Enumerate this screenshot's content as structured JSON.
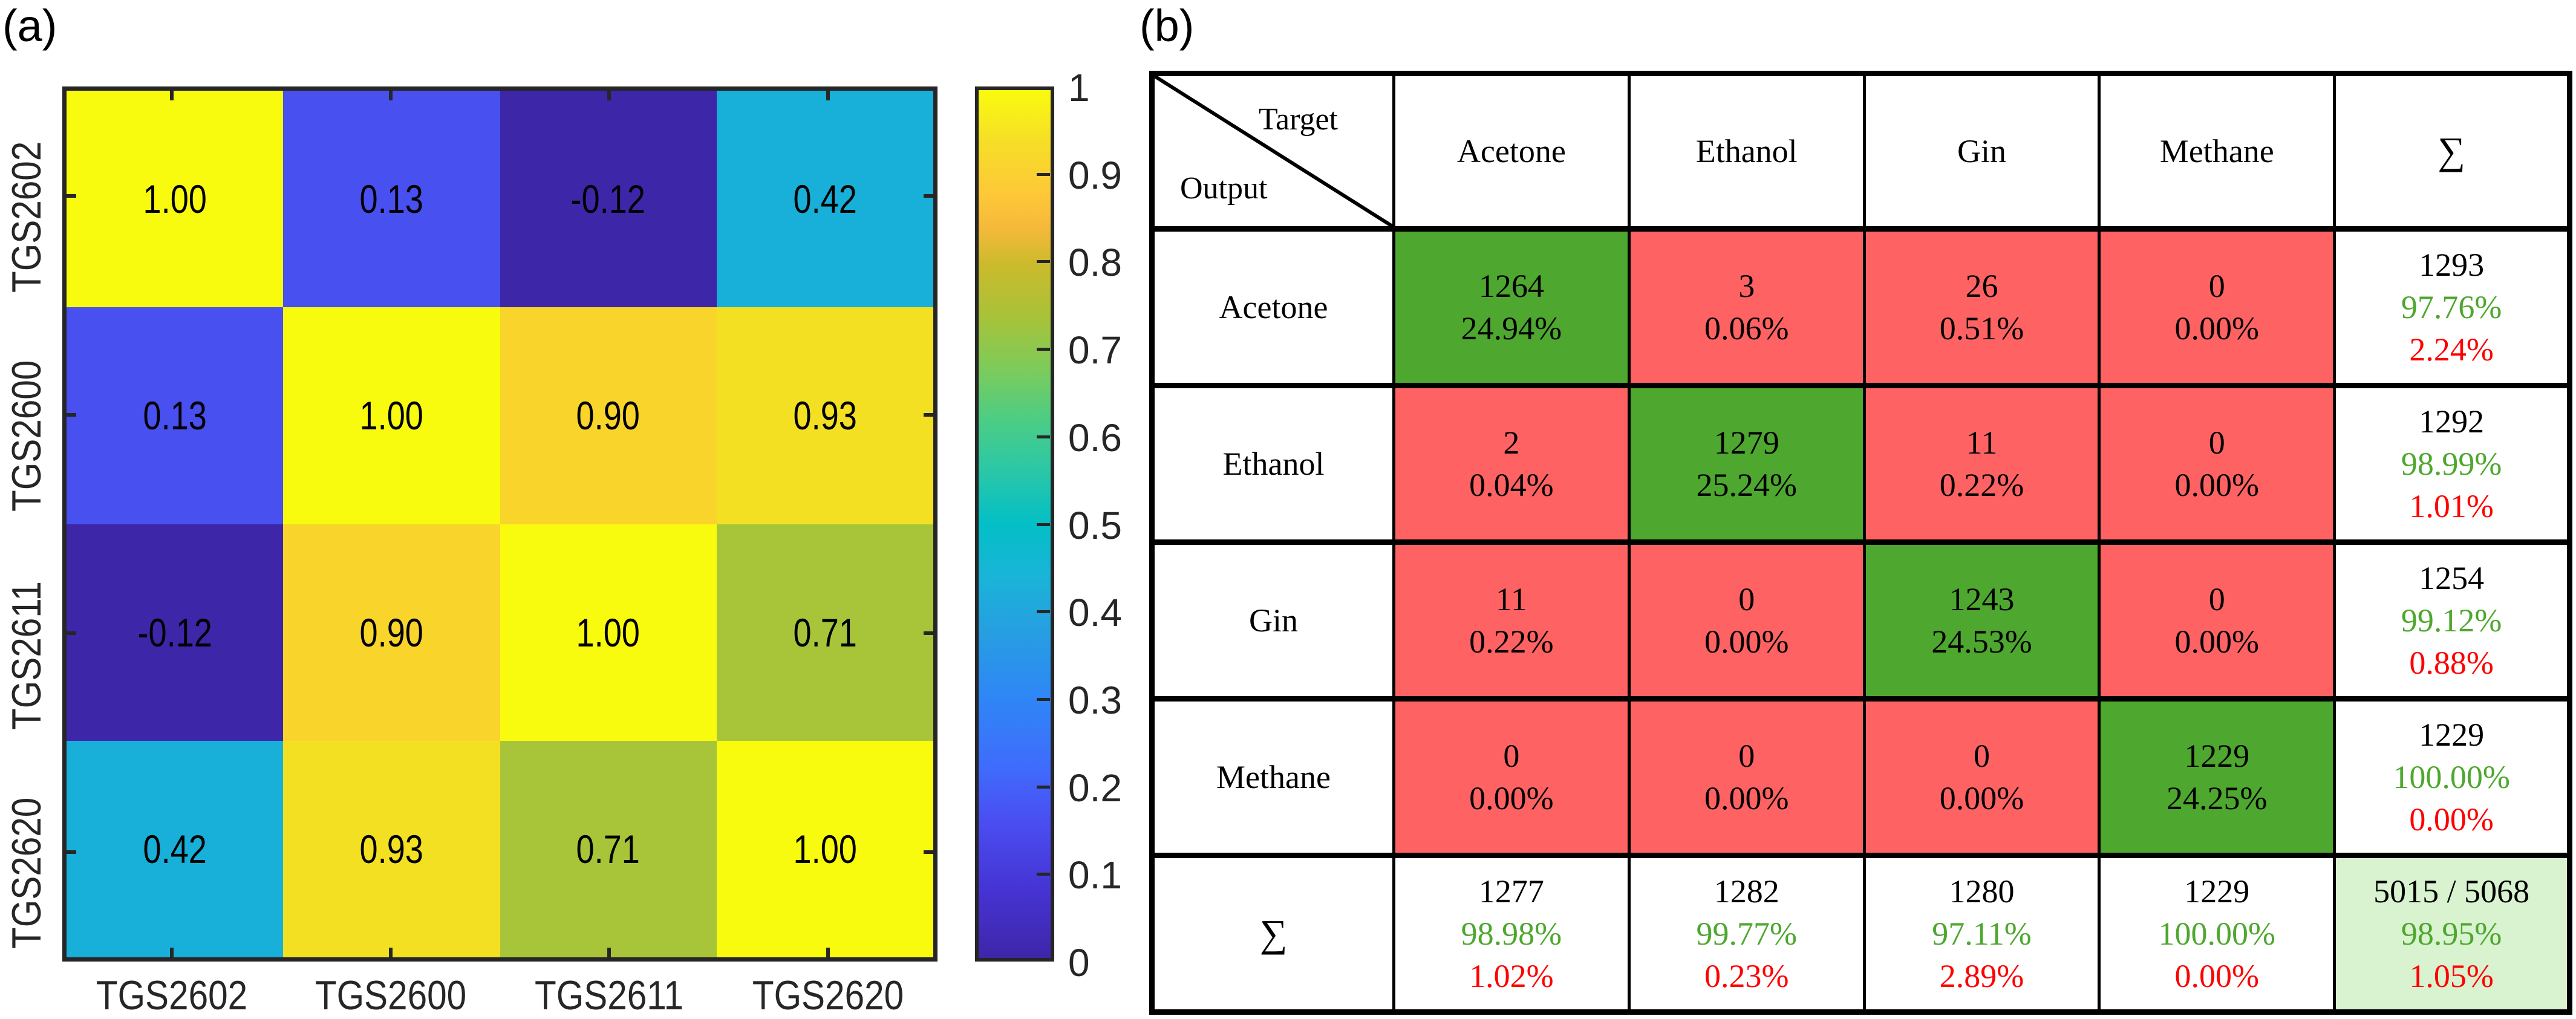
{
  "panel_labels": {
    "a": "(a)",
    "b": "(b)"
  },
  "heatmap": {
    "row_labels": [
      "TGS2602",
      "TGS2600",
      "TGS2611",
      "TGS2620"
    ],
    "col_labels": [
      "TGS2602",
      "TGS2600",
      "TGS2611",
      "TGS2620"
    ],
    "cells": [
      [
        {
          "v": "1.00",
          "c": "#f9fb0e"
        },
        {
          "v": "0.13",
          "c": "#4850ef"
        },
        {
          "v": "-0.12",
          "c": "#3e26a8"
        },
        {
          "v": "0.42",
          "c": "#18afd8"
        }
      ],
      [
        {
          "v": "0.13",
          "c": "#4850ef"
        },
        {
          "v": "1.00",
          "c": "#f9fb0e"
        },
        {
          "v": "0.90",
          "c": "#f9d42b"
        },
        {
          "v": "0.93",
          "c": "#f4e022"
        }
      ],
      [
        {
          "v": "-0.12",
          "c": "#3e26a8"
        },
        {
          "v": "0.90",
          "c": "#f9d42b"
        },
        {
          "v": "1.00",
          "c": "#f9fb0e"
        },
        {
          "v": "0.71",
          "c": "#a8c53a"
        }
      ],
      [
        {
          "v": "0.42",
          "c": "#18afd8"
        },
        {
          "v": "0.93",
          "c": "#f4e022"
        },
        {
          "v": "0.71",
          "c": "#a8c53a"
        },
        {
          "v": "1.00",
          "c": "#f9fb0e"
        }
      ]
    ]
  },
  "colorbar": {
    "ticks": [
      "1",
      "0.9",
      "0.8",
      "0.7",
      "0.6",
      "0.5",
      "0.4",
      "0.3",
      "0.2",
      "0.1",
      "0"
    ]
  },
  "confusion_matrix": {
    "corner_target": "Target",
    "corner_output": "Output",
    "sum_symbol": "∑",
    "classes": [
      "Acetone",
      "Ethanol",
      "Gin",
      "Methane"
    ],
    "rows": [
      {
        "label": "Acetone",
        "cells": [
          {
            "n": "1264",
            "p": "24.94%"
          },
          {
            "n": "3",
            "p": "0.06%"
          },
          {
            "n": "26",
            "p": "0.51%"
          },
          {
            "n": "0",
            "p": "0.00%"
          }
        ],
        "total": {
          "n": "1293",
          "correct": "97.76%",
          "error": "2.24%"
        }
      },
      {
        "label": "Ethanol",
        "cells": [
          {
            "n": "2",
            "p": "0.04%"
          },
          {
            "n": "1279",
            "p": "25.24%"
          },
          {
            "n": "11",
            "p": "0.22%"
          },
          {
            "n": "0",
            "p": "0.00%"
          }
        ],
        "total": {
          "n": "1292",
          "correct": "98.99%",
          "error": "1.01%"
        }
      },
      {
        "label": "Gin",
        "cells": [
          {
            "n": "11",
            "p": "0.22%"
          },
          {
            "n": "0",
            "p": "0.00%"
          },
          {
            "n": "1243",
            "p": "24.53%"
          },
          {
            "n": "0",
            "p": "0.00%"
          }
        ],
        "total": {
          "n": "1254",
          "correct": "99.12%",
          "error": "0.88%"
        }
      },
      {
        "label": "Methane",
        "cells": [
          {
            "n": "0",
            "p": "0.00%"
          },
          {
            "n": "0",
            "p": "0.00%"
          },
          {
            "n": "0",
            "p": "0.00%"
          },
          {
            "n": "1229",
            "p": "24.25%"
          }
        ],
        "total": {
          "n": "1229",
          "correct": "100.00%",
          "error": "0.00%"
        }
      }
    ],
    "column_totals": [
      {
        "n": "1277",
        "correct": "98.98%",
        "error": "1.02%"
      },
      {
        "n": "1282",
        "correct": "99.77%",
        "error": "0.23%"
      },
      {
        "n": "1280",
        "correct": "97.11%",
        "error": "2.89%"
      },
      {
        "n": "1229",
        "correct": "100.00%",
        "error": "0.00%"
      }
    ],
    "grand_total": {
      "n": "5015 / 5068",
      "correct": "98.95%",
      "error": "1.05%"
    }
  },
  "colors": {
    "correct_cell": "#4ea72e",
    "incorrect_cell": "#ff6262",
    "total_cell": "#d9f2d0",
    "correct_text": "#4ea72e",
    "error_text": "#ff0000"
  },
  "chart_data": [
    {
      "type": "heatmap",
      "title": "(a)",
      "x": [
        "TGS2602",
        "TGS2600",
        "TGS2611",
        "TGS2620"
      ],
      "y": [
        "TGS2602",
        "TGS2600",
        "TGS2611",
        "TGS2620"
      ],
      "values": [
        [
          1.0,
          0.13,
          -0.12,
          0.42
        ],
        [
          0.13,
          1.0,
          0.9,
          0.93
        ],
        [
          -0.12,
          0.9,
          1.0,
          0.71
        ],
        [
          0.42,
          0.93,
          0.71,
          1.0
        ]
      ],
      "colorbar": {
        "range": [
          0,
          1
        ],
        "ticks": [
          0,
          0.1,
          0.2,
          0.3,
          0.4,
          0.5,
          0.6,
          0.7,
          0.8,
          0.9,
          1
        ],
        "colormap": "parula"
      },
      "xlabel": "",
      "ylabel": "",
      "grid": false
    },
    {
      "type": "table",
      "title": "(b)",
      "row_header": "Output",
      "col_header": "Target",
      "classes": [
        "Acetone",
        "Ethanol",
        "Gin",
        "Methane"
      ],
      "counts": [
        [
          1264,
          3,
          26,
          0
        ],
        [
          2,
          1279,
          11,
          0
        ],
        [
          11,
          0,
          1243,
          0
        ],
        [
          0,
          0,
          0,
          1229
        ]
      ],
      "percentages": [
        [
          24.94,
          0.06,
          0.51,
          0.0
        ],
        [
          0.04,
          25.24,
          0.22,
          0.0
        ],
        [
          0.22,
          0.0,
          24.53,
          0.0
        ],
        [
          0.0,
          0.0,
          0.0,
          24.25
        ]
      ],
      "row_totals": [
        1293,
        1292,
        1254,
        1229
      ],
      "row_precision_pct": [
        97.76,
        98.99,
        99.12,
        100.0
      ],
      "row_error_pct": [
        2.24,
        1.01,
        0.88,
        0.0
      ],
      "col_totals": [
        1277,
        1282,
        1280,
        1229
      ],
      "col_recall_pct": [
        98.98,
        99.77,
        97.11,
        100.0
      ],
      "col_error_pct": [
        1.02,
        0.23,
        2.89,
        0.0
      ],
      "overall": {
        "correct": 5015,
        "total": 5068,
        "accuracy_pct": 98.95,
        "error_pct": 1.05
      }
    }
  ]
}
